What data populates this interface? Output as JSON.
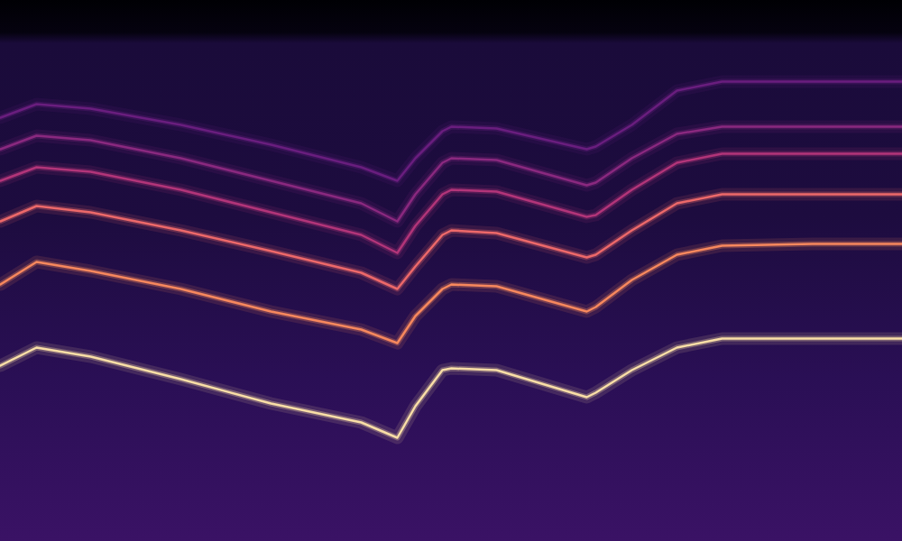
{
  "chart_data": {
    "type": "line",
    "x": [
      0,
      4,
      10,
      20,
      30,
      40,
      44,
      46,
      49,
      50,
      55,
      65,
      66,
      70,
      75,
      80,
      90,
      100
    ],
    "xlim": [
      0,
      100
    ],
    "ylim": [
      0,
      600
    ],
    "tick_labels": false,
    "grid": false,
    "series": [
      {
        "color": "#fde2a8",
        "values": [
          195,
          215,
          205,
          180,
          153,
          132,
          115,
          150,
          190,
          192,
          190,
          160,
          165,
          190,
          215,
          225,
          225,
          225
        ]
      },
      {
        "color": "#fb8a5e",
        "values": [
          285,
          310,
          300,
          280,
          255,
          235,
          220,
          250,
          280,
          285,
          283,
          255,
          260,
          290,
          318,
          328,
          330,
          330
        ]
      },
      {
        "color": "#f06a6a",
        "values": [
          355,
          372,
          365,
          345,
          322,
          298,
          280,
          305,
          340,
          345,
          342,
          315,
          318,
          345,
          375,
          385,
          385,
          385
        ]
      },
      {
        "color": "#b5367a",
        "values": [
          400,
          415,
          410,
          390,
          365,
          340,
          320,
          350,
          385,
          390,
          388,
          360,
          362,
          390,
          420,
          430,
          430,
          430
        ]
      },
      {
        "color": "#8c2981",
        "values": [
          435,
          450,
          445,
          425,
          400,
          375,
          355,
          385,
          420,
          425,
          423,
          395,
          398,
          425,
          452,
          460,
          460,
          460
        ]
      },
      {
        "color": "#6a1f80",
        "values": [
          470,
          485,
          480,
          462,
          440,
          415,
          400,
          425,
          455,
          460,
          458,
          435,
          438,
          462,
          500,
          510,
          510,
          510
        ]
      }
    ]
  }
}
